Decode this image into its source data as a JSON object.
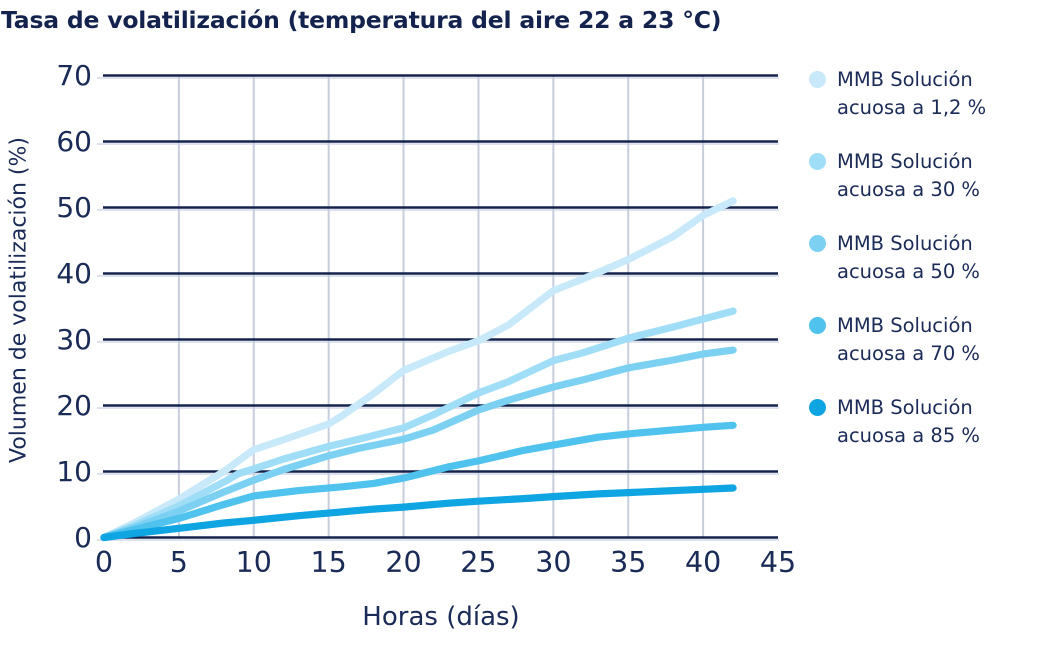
{
  "title": "Tasa de volatilización (temperatura del aire 22 a 23 °C)",
  "colors": {
    "text": "#1B2B57",
    "grid_horizontal": "#13234C",
    "grid_horizontal_echo": "#D3D9E7",
    "grid_vertical": "#C7CDDD",
    "background": "#FFFFFF"
  },
  "chart_data": {
    "type": "line",
    "title": "Tasa de volatilización (temperatura del aire 22 a 23 °C)",
    "xlabel": "Horas (días)",
    "ylabel": "Volumen de volatilización (%)",
    "xlim": [
      0,
      45
    ],
    "ylim": [
      0,
      70
    ],
    "x_ticks": [
      0,
      5,
      10,
      15,
      20,
      25,
      30,
      35,
      40,
      45
    ],
    "y_ticks": [
      0,
      10,
      20,
      30,
      40,
      50,
      60,
      70
    ],
    "grid": "on",
    "legend_position": "right",
    "series": [
      {
        "name": "MMB Solución acuosa a 1,2 %",
        "name_lines": [
          "MMB Solución",
          "acuosa a 1,2 %"
        ],
        "color": "#C8E9FA",
        "points": [
          [
            0,
            0
          ],
          [
            2,
            2.2
          ],
          [
            5,
            5.8
          ],
          [
            8,
            10
          ],
          [
            10,
            13.3
          ],
          [
            13,
            15.6
          ],
          [
            15,
            17.2
          ],
          [
            16,
            18.6
          ],
          [
            18,
            21.8
          ],
          [
            20,
            25.3
          ],
          [
            23,
            28.2
          ],
          [
            25,
            29.8
          ],
          [
            27,
            32.2
          ],
          [
            30,
            37.4
          ],
          [
            32,
            39.2
          ],
          [
            35,
            42.1
          ],
          [
            38,
            45.6
          ],
          [
            40,
            48.8
          ],
          [
            42,
            51
          ]
        ]
      },
      {
        "name": "MMB Solución acuosa a 30 %",
        "name_lines": [
          "MMB Solución",
          "acuosa a 30 %"
        ],
        "color": "#A0DDF7",
        "points": [
          [
            0,
            0
          ],
          [
            2,
            1.8
          ],
          [
            5,
            4.8
          ],
          [
            8,
            8.4
          ],
          [
            9,
            9.7
          ],
          [
            10,
            10.4
          ],
          [
            12,
            11.9
          ],
          [
            15,
            13.8
          ],
          [
            17,
            14.9
          ],
          [
            20,
            16.6
          ],
          [
            22,
            18.6
          ],
          [
            25,
            21.9
          ],
          [
            27,
            23.6
          ],
          [
            30,
            26.8
          ],
          [
            32,
            28
          ],
          [
            35,
            30.2
          ],
          [
            38,
            31.9
          ],
          [
            40,
            33.1
          ],
          [
            42,
            34.3
          ]
        ]
      },
      {
        "name": "MMB Solución acuosa a 50 %",
        "name_lines": [
          "MMB Solución",
          "acuosa a 50 %"
        ],
        "color": "#7CD1F3",
        "points": [
          [
            0,
            0
          ],
          [
            2,
            1.5
          ],
          [
            5,
            4
          ],
          [
            8,
            6.9
          ],
          [
            10,
            8.7
          ],
          [
            12,
            10.3
          ],
          [
            15,
            12.4
          ],
          [
            17,
            13.5
          ],
          [
            20,
            14.9
          ],
          [
            22,
            16.3
          ],
          [
            25,
            19.3
          ],
          [
            27,
            20.8
          ],
          [
            30,
            22.8
          ],
          [
            32,
            23.9
          ],
          [
            35,
            25.7
          ],
          [
            38,
            26.9
          ],
          [
            40,
            27.8
          ],
          [
            42,
            28.4
          ]
        ]
      },
      {
        "name": "MMB Solución acuosa a 70 %",
        "name_lines": [
          "MMB Solución",
          "acuosa a 70 %"
        ],
        "color": "#4FC2EE",
        "points": [
          [
            0,
            0
          ],
          [
            2,
            1.2
          ],
          [
            5,
            2.9
          ],
          [
            8,
            5
          ],
          [
            10,
            6.3
          ],
          [
            13,
            7.1
          ],
          [
            16,
            7.7
          ],
          [
            18,
            8.2
          ],
          [
            20,
            9
          ],
          [
            23,
            10.7
          ],
          [
            25,
            11.6
          ],
          [
            28,
            13.2
          ],
          [
            30,
            14
          ],
          [
            33,
            15.2
          ],
          [
            35,
            15.7
          ],
          [
            38,
            16.3
          ],
          [
            40,
            16.7
          ],
          [
            42,
            17
          ]
        ]
      },
      {
        "name": "MMB Solución acuosa a 85 %",
        "name_lines": [
          "MMB Solución",
          "acuosa a 85 %"
        ],
        "color": "#0EA5E2",
        "points": [
          [
            0,
            0
          ],
          [
            2,
            0.6
          ],
          [
            5,
            1.4
          ],
          [
            8,
            2.2
          ],
          [
            10,
            2.6
          ],
          [
            13,
            3.3
          ],
          [
            15,
            3.7
          ],
          [
            18,
            4.3
          ],
          [
            20,
            4.6
          ],
          [
            23,
            5.2
          ],
          [
            25,
            5.5
          ],
          [
            28,
            5.9
          ],
          [
            30,
            6.2
          ],
          [
            33,
            6.6
          ],
          [
            35,
            6.8
          ],
          [
            38,
            7.1
          ],
          [
            40,
            7.3
          ],
          [
            42,
            7.5
          ]
        ]
      }
    ]
  }
}
